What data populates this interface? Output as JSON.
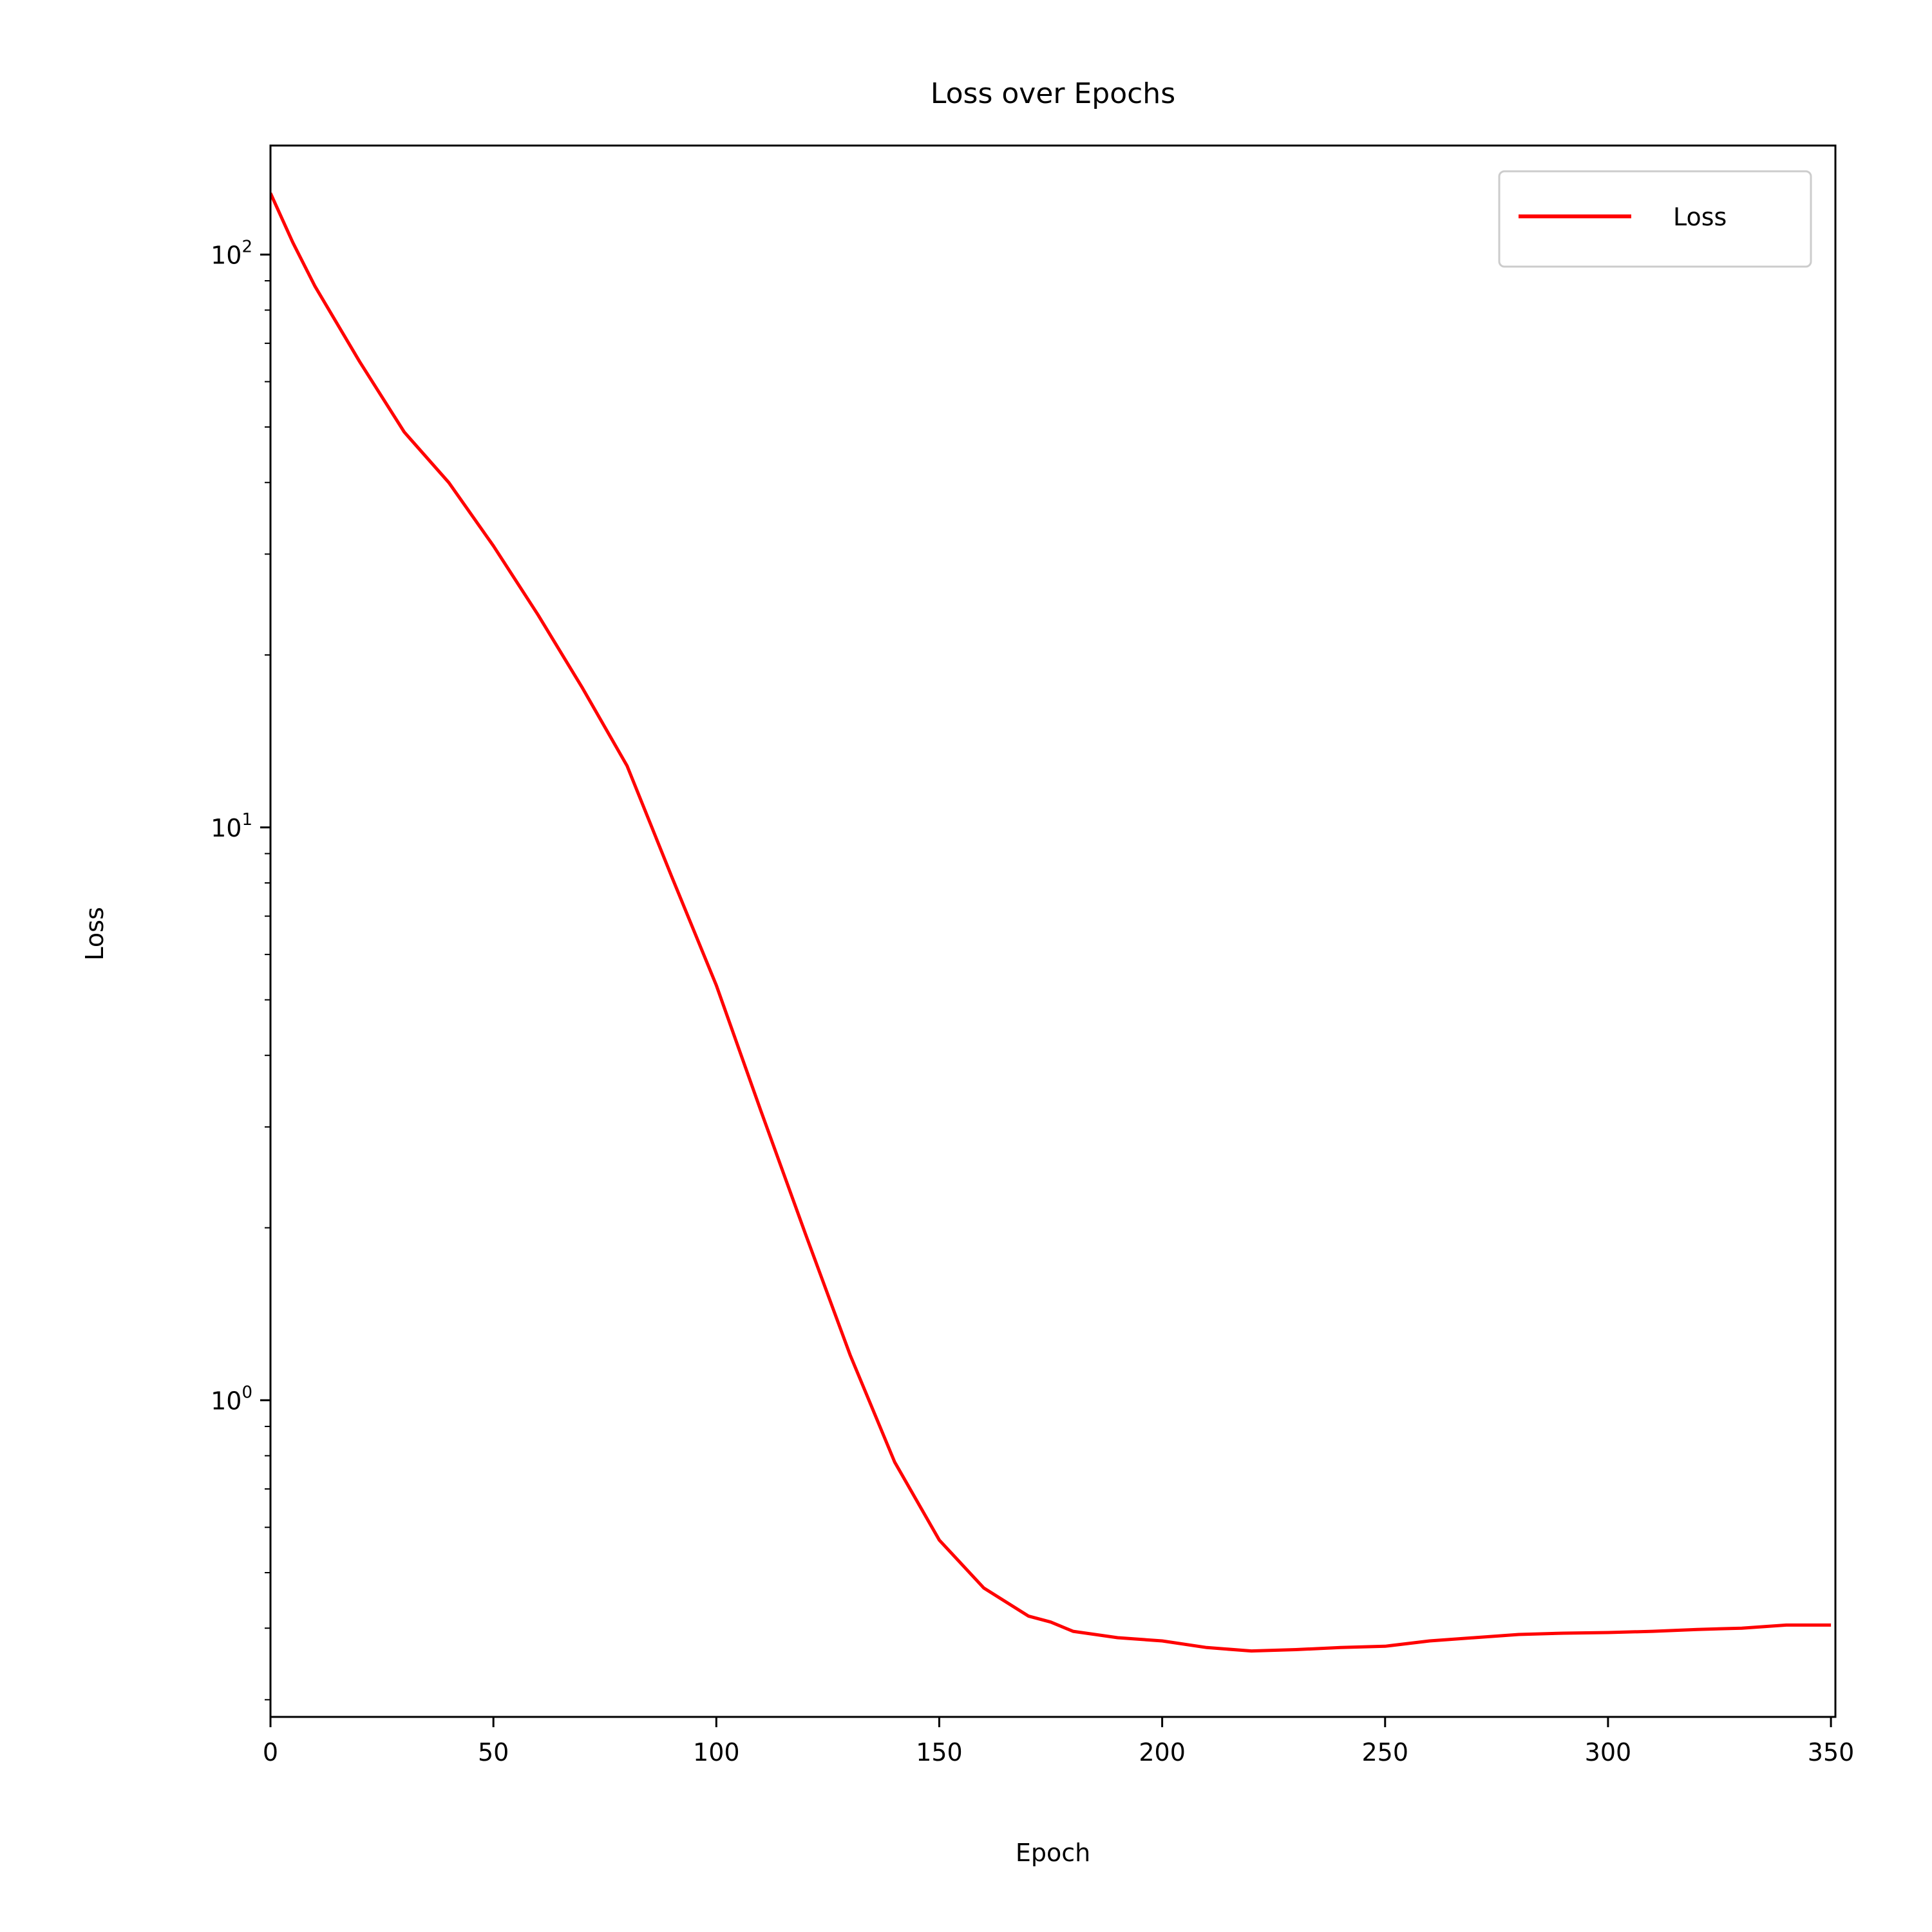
{
  "chart_data": {
    "type": "line",
    "title": "Loss over Epochs",
    "xlabel": "Epoch",
    "ylabel": "Loss",
    "xlim": [
      0,
      351
    ],
    "ylim": [
      0.28,
      155
    ],
    "yscale": "log",
    "grid": false,
    "legend": {
      "position": "top-right",
      "entries": [
        "Loss"
      ]
    },
    "x_ticks": [
      0,
      50,
      100,
      150,
      200,
      250,
      300,
      350
    ],
    "x_tick_labels": [
      "0",
      "50",
      "100",
      "150",
      "200",
      "250",
      "300",
      "350"
    ],
    "y_ticks": [
      1,
      10,
      100
    ],
    "y_tick_labels": [
      {
        "base": "10",
        "exp": "0"
      },
      {
        "base": "10",
        "exp": "1"
      },
      {
        "base": "10",
        "exp": "2"
      }
    ],
    "series": [
      {
        "name": "Loss",
        "color": "#ff0000",
        "x": [
          0,
          5,
          10,
          20,
          30,
          40,
          50,
          60,
          70,
          80,
          90,
          100,
          110,
          120,
          130,
          140,
          150,
          160,
          170,
          175,
          180,
          190,
          200,
          210,
          220,
          230,
          240,
          250,
          260,
          270,
          280,
          290,
          300,
          310,
          320,
          330,
          340,
          350
        ],
        "y": [
          128,
          105,
          88,
          65,
          49,
          40,
          31,
          23.5,
          17.5,
          12.8,
          8.2,
          5.3,
          3.2,
          1.95,
          1.2,
          0.78,
          0.57,
          0.47,
          0.42,
          0.41,
          0.395,
          0.385,
          0.38,
          0.37,
          0.365,
          0.367,
          0.37,
          0.372,
          0.38,
          0.385,
          0.39,
          0.392,
          0.393,
          0.395,
          0.398,
          0.4,
          0.405,
          0.405
        ]
      }
    ]
  }
}
